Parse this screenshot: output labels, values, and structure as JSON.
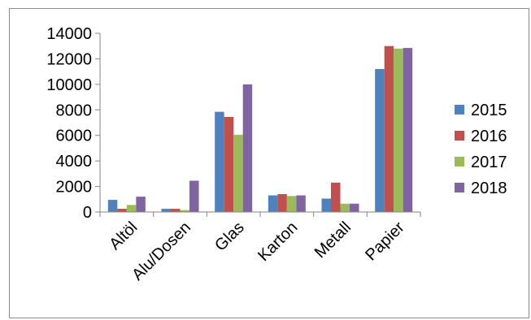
{
  "chart_data": {
    "type": "bar",
    "categories": [
      "Altöl",
      "Alu/Dosen",
      "Glas",
      "Karton",
      "Metall",
      "Papier"
    ],
    "series": [
      {
        "name": "2015",
        "color": "#4f81bd",
        "values": [
          950,
          250,
          7850,
          1300,
          1050,
          11200
        ]
      },
      {
        "name": "2016",
        "color": "#c0504d",
        "values": [
          250,
          250,
          7450,
          1400,
          2300,
          13000
        ]
      },
      {
        "name": "2017",
        "color": "#9bbb59",
        "values": [
          550,
          150,
          6050,
          1250,
          650,
          12800
        ]
      },
      {
        "name": "2018",
        "color": "#8064a2",
        "values": [
          1200,
          2450,
          10000,
          1300,
          650,
          12850
        ]
      }
    ],
    "y_ticks": [
      0,
      2000,
      4000,
      6000,
      8000,
      10000,
      12000,
      14000
    ],
    "ylim": [
      0,
      14000
    ],
    "grid": false,
    "legend_position": "right",
    "title": "",
    "xlabel": "",
    "ylabel": ""
  }
}
